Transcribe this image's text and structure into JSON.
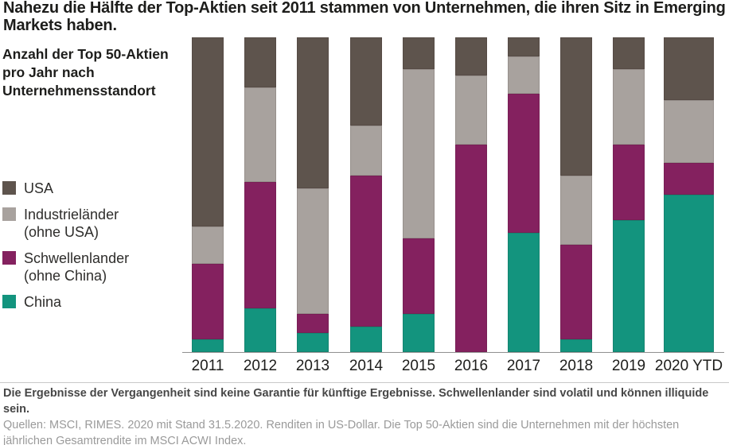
{
  "title": "Nahezu die Hälfte der Top-Aktien seit 2011 stammen von Unternehmen, die ihren Sitz in Emerging Markets haben.",
  "subtitle": "Anzahl der Top 50-Aktien pro Jahr nach Unternehmensstandort",
  "legend": {
    "items": [
      {
        "key": "usa",
        "label": "USA",
        "sublabel": "",
        "color": "#5e544d"
      },
      {
        "key": "industrielaender",
        "label": "Industrieländer",
        "sublabel": "(ohne USA)",
        "color": "#a8a29e"
      },
      {
        "key": "schwellenlaender",
        "label": "Schwellenlander",
        "sublabel": "(ohne China)",
        "color": "#84215f"
      },
      {
        "key": "china",
        "label": "China",
        "sublabel": "",
        "color": "#13947e"
      }
    ]
  },
  "chart_data": {
    "type": "bar",
    "stacked": true,
    "title": "Anzahl der Top 50-Aktien pro Jahr nach Unternehmensstandort",
    "categories": [
      "2011",
      "2012",
      "2013",
      "2014",
      "2015",
      "2016",
      "2017",
      "2018",
      "2019",
      "2020 YTD"
    ],
    "series": [
      {
        "key": "usa",
        "name": "USA",
        "color": "#5e544d",
        "values": [
          30,
          8,
          24,
          14,
          5,
          6,
          3,
          22,
          5,
          10
        ]
      },
      {
        "key": "industrielaender",
        "name": "Industrieländer (ohne USA)",
        "color": "#a8a29e",
        "values": [
          6,
          15,
          20,
          8,
          27,
          11,
          6,
          11,
          12,
          10
        ]
      },
      {
        "key": "schwellenlaender",
        "name": "Schwellenlander (ohne China)",
        "color": "#84215f",
        "values": [
          12,
          20,
          3,
          24,
          12,
          33,
          22,
          15,
          12,
          5
        ]
      },
      {
        "key": "china",
        "name": "China",
        "color": "#13947e",
        "values": [
          2,
          7,
          3,
          4,
          6,
          0,
          19,
          2,
          21,
          25
        ]
      }
    ],
    "xlabel": "",
    "ylabel": "",
    "ylim": [
      0,
      50
    ],
    "grid": false,
    "legend_position": "left",
    "stack_order_bottom_to_top": [
      "china",
      "schwellenlaender",
      "industrielaender",
      "usa"
    ]
  },
  "footnotes": {
    "disclaimer": "Die Ergebnisse der Vergangenheit sind keine Garantie für künftige Ergebnisse. Schwellenlander sind volatil und können illiquide sein.",
    "sources": "Quellen: MSCI, RIMES. 2020 mit Stand 31.5.2020. Renditen in US-Dollar. Die Top 50-Aktien sind die Unternehmen mit der höchsten jährlichen Gesamtrendite im MSCI ACWI Index."
  },
  "colors": {
    "background": "#ffffff",
    "usa": "#5e544d",
    "industrielaender": "#a8a29e",
    "schwellenlaender": "#84215f",
    "china": "#13947e",
    "axis_line": "#909090",
    "divider": "#c9c9c9",
    "title_text": "#1d1d1b",
    "disclaimer_text": "#474747",
    "sources_text": "#9a9a9a"
  }
}
